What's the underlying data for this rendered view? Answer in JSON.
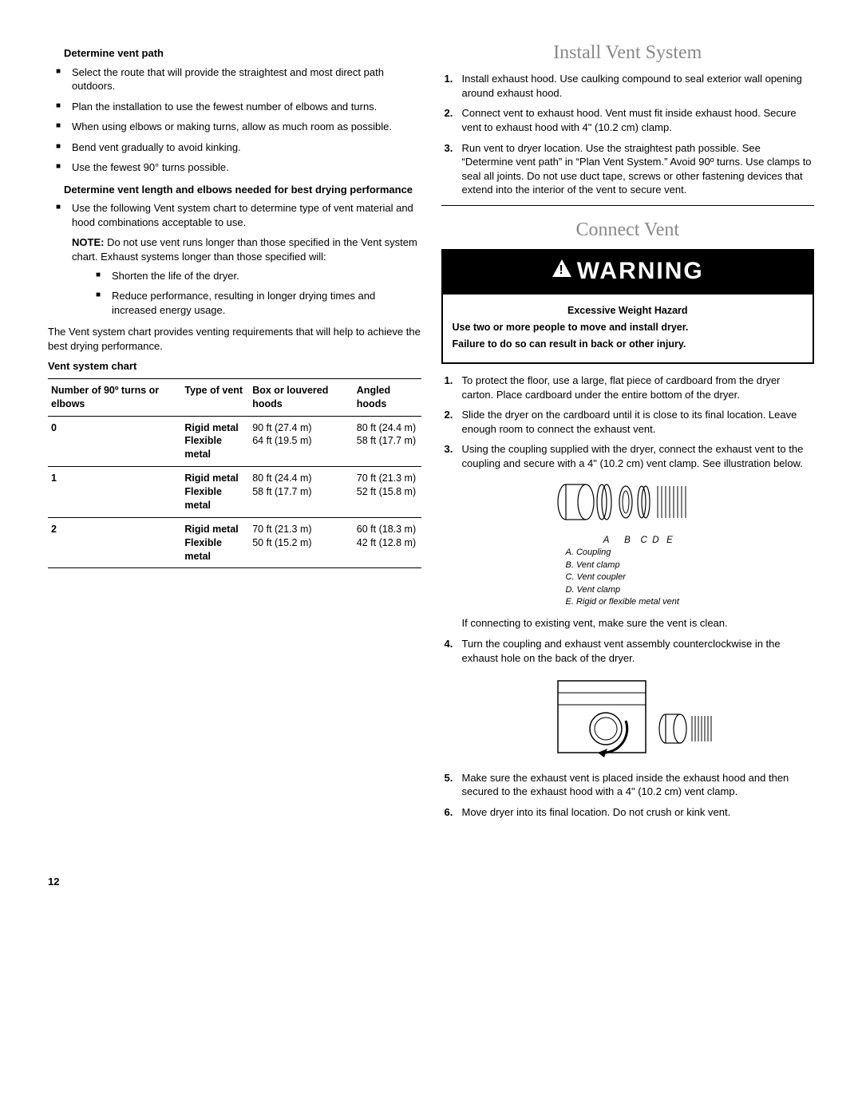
{
  "left": {
    "subhead1": "Determine vent path",
    "bullets1": [
      "Select the route that will provide the straightest and most direct path outdoors.",
      "Plan the installation to use the fewest number of elbows and turns.",
      "When using elbows or making turns, allow as much room as possible.",
      "Bend vent gradually to avoid kinking.",
      "Use the fewest 90° turns possible."
    ],
    "subhead2": "Determine vent length and elbows needed for best drying performance",
    "bullet2": "Use the following Vent system chart to determine type of vent material and hood combinations acceptable to use.",
    "note_label": "NOTE:",
    "note_text": " Do not use vent runs longer than those specified in the Vent system chart. Exhaust systems longer than those specified will:",
    "note_bullets": [
      "Shorten the life of the dryer.",
      "Reduce performance, resulting in longer drying times and increased energy usage."
    ],
    "after_note": "The Vent system chart provides venting requirements that will help to achieve the best drying performance.",
    "chart_title": "Vent system chart",
    "table": {
      "headers": [
        "Number of 90º turns or elbows",
        "Type of vent",
        "Box or louvered hoods",
        "Angled hoods"
      ],
      "rows": [
        {
          "n": "0",
          "t1": "Rigid metal",
          "t2": "Flexible metal",
          "b1": "90 ft (27.4 m)",
          "b2": "64 ft (19.5 m)",
          "a1": "80 ft (24.4 m)",
          "a2": "58 ft (17.7 m)"
        },
        {
          "n": "1",
          "t1": "Rigid metal",
          "t2": "Flexible metal",
          "b1": "80 ft (24.4 m)",
          "b2": "58 ft (17.7 m)",
          "a1": "70 ft (21.3 m)",
          "a2": "52 ft (15.8 m)"
        },
        {
          "n": "2",
          "t1": "Rigid metal",
          "t2": "Flexible metal",
          "b1": "70 ft (21.3 m)",
          "b2": "50 ft (15.2 m)",
          "a1": "60 ft (18.3 m)",
          "a2": "42 ft (12.8 m)"
        }
      ]
    }
  },
  "right": {
    "heading1": "Install Vent System",
    "install_steps": [
      "Install exhaust hood. Use caulking compound to seal exterior wall opening around exhaust hood.",
      "Connect vent to exhaust hood. Vent must fit inside exhaust hood. Secure vent to exhaust hood with 4\" (10.2 cm) clamp.",
      "Run vent to dryer location. Use the straightest path possible. See “Determine vent path” in “Plan Vent System.” Avoid 90º turns. Use clamps to seal all joints. Do not use duct tape, screws or other fastening devices that extend into the interior of the vent to secure vent."
    ],
    "heading2": "Connect Vent",
    "warning_word": "WARNING",
    "warning_lines": [
      "Excessive Weight Hazard",
      "Use two or more people to move and install dryer.",
      "Failure to do so can result in back or other injury."
    ],
    "connect_steps_a": [
      "To protect the floor, use a large, flat piece of cardboard from the dryer carton. Place cardboard under the entire bottom of the dryer.",
      "Slide the dryer on the cardboard until it is close to its final location. Leave enough room to connect the exhaust vent.",
      "Using the coupling supplied with the dryer, connect the exhaust vent to the coupling and secure with a 4\" (10.2 cm) vent clamp. See illustration below."
    ],
    "diagram1_labels": "A      B    C  D   E",
    "diagram1_legend": [
      "A. Coupling",
      "B. Vent clamp",
      "C. Vent coupler",
      "D. Vent clamp",
      "E. Rigid or flexible metal vent"
    ],
    "after_diagram1": "If connecting to existing vent, make sure the vent is clean.",
    "step4": "Turn the coupling and exhaust vent assembly counterclockwise in the exhaust hole on the back of the dryer.",
    "connect_steps_b": [
      "Make sure the exhaust vent is placed inside the exhaust hood and then secured to the exhaust hood with a 4\" (10.2 cm) vent clamp.",
      "Move dryer into its final location. Do not crush or kink vent."
    ]
  },
  "page_num": "12"
}
